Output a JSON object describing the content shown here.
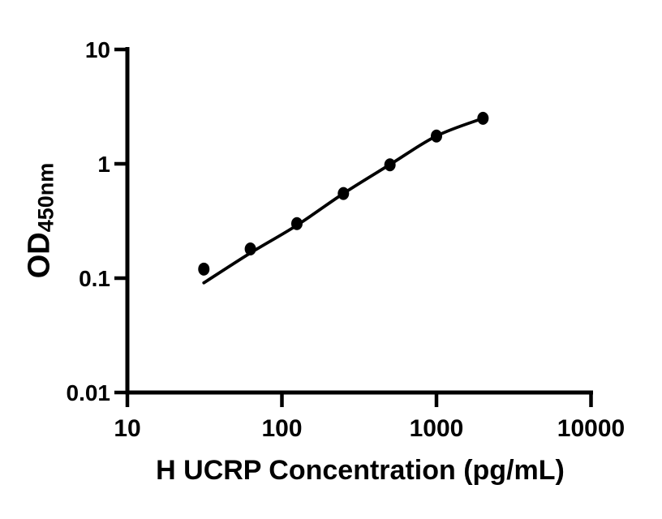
{
  "chart_data": {
    "type": "scatter",
    "title": "",
    "xlabel": "H UCRP Concentration (pg/mL)",
    "ylabel_main": "OD",
    "ylabel_subscript": "450nm",
    "x_scale": "log",
    "y_scale": "log",
    "xlim": [
      10,
      10000
    ],
    "ylim": [
      0.01,
      10
    ],
    "x_ticks": [
      {
        "value": 10,
        "label": "10"
      },
      {
        "value": 100,
        "label": "100"
      },
      {
        "value": 1000,
        "label": "1000"
      },
      {
        "value": 10000,
        "label": "10000"
      }
    ],
    "y_ticks": [
      {
        "value": 10,
        "label": "10"
      },
      {
        "value": 1,
        "label": "1"
      },
      {
        "value": 0.1,
        "label": "0.1"
      },
      {
        "value": 0.01,
        "label": "0.01"
      }
    ],
    "grid": false,
    "legend": false,
    "axis_color": "#000000",
    "background_color": "#ffffff",
    "series": [
      {
        "name": "standard-points",
        "type": "scatter",
        "marker": "filled-ellipse",
        "color": "#000000",
        "points": [
          {
            "x": 31.25,
            "y": 0.12
          },
          {
            "x": 62.5,
            "y": 0.18
          },
          {
            "x": 125,
            "y": 0.3
          },
          {
            "x": 250,
            "y": 0.55
          },
          {
            "x": 500,
            "y": 0.98
          },
          {
            "x": 1000,
            "y": 1.75
          },
          {
            "x": 2000,
            "y": 2.5
          }
        ]
      },
      {
        "name": "fitted-curve",
        "type": "line",
        "color": "#000000",
        "points": [
          {
            "x": 31.25,
            "y": 0.091
          },
          {
            "x": 62.5,
            "y": 0.166
          },
          {
            "x": 125,
            "y": 0.29
          },
          {
            "x": 250,
            "y": 0.55
          },
          {
            "x": 500,
            "y": 0.985
          },
          {
            "x": 1000,
            "y": 1.75
          },
          {
            "x": 2000,
            "y": 2.5
          }
        ]
      }
    ]
  }
}
